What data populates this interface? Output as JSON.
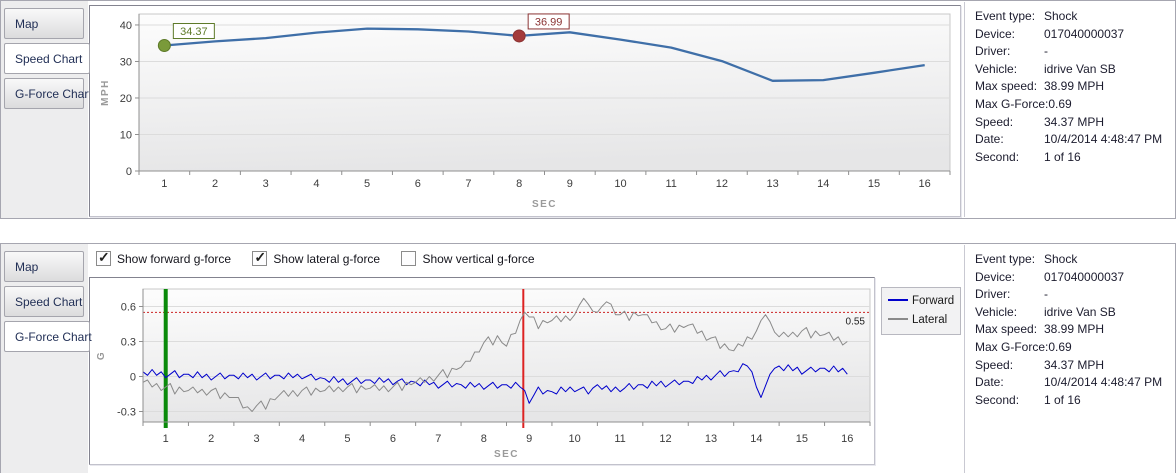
{
  "panels": [
    {
      "name": "speed-panel",
      "selected_tab": "Speed Chart",
      "tabs": [
        {
          "label": "Map"
        },
        {
          "label": "Speed Chart"
        },
        {
          "label": "G-Force Chart"
        }
      ],
      "info": {
        "rows": [
          {
            "label": "Event type:",
            "value": "Shock"
          },
          {
            "label": "Device:",
            "value": "017040000037"
          },
          {
            "label": "Driver:",
            "value": "-"
          },
          {
            "label": "Vehicle:",
            "value": "idrive Van SB"
          },
          {
            "label": "Max speed:",
            "value": "38.99 MPH"
          },
          {
            "label": "Max G-Force:",
            "value": "0.69"
          },
          {
            "label": "Speed:",
            "value": "34.37 MPH"
          },
          {
            "label": "Date:",
            "value": "10/4/2014 4:48:47 PM"
          },
          {
            "label": "Second:",
            "value": "1 of 16"
          }
        ]
      }
    },
    {
      "name": "gforce-panel",
      "selected_tab": "G-Force Chart",
      "tabs": [
        {
          "label": "Map"
        },
        {
          "label": "Speed Chart"
        },
        {
          "label": "G-Force Chart"
        }
      ],
      "checkboxes": [
        {
          "label": "Show forward g-force",
          "checked": true
        },
        {
          "label": "Show lateral g-force",
          "checked": true
        },
        {
          "label": "Show vertical g-force",
          "checked": false
        }
      ],
      "info": {
        "rows": [
          {
            "label": "Event type:",
            "value": "Shock"
          },
          {
            "label": "Device:",
            "value": "017040000037"
          },
          {
            "label": "Driver:",
            "value": "-"
          },
          {
            "label": "Vehicle:",
            "value": "idrive Van SB"
          },
          {
            "label": "Max speed:",
            "value": "38.99 MPH"
          },
          {
            "label": "Max G-Force:",
            "value": "0.69"
          },
          {
            "label": "Speed:",
            "value": "34.37 MPH"
          },
          {
            "label": "Date:",
            "value": "10/4/2014 4:48:47 PM"
          },
          {
            "label": "Second:",
            "value": "1 of 16"
          }
        ]
      }
    }
  ],
  "chart_data": [
    {
      "type": "line",
      "title": "Speed Chart",
      "xlabel": "SEC",
      "ylabel": "MPH",
      "xlim": [
        0.5,
        16.5
      ],
      "ylim": [
        0,
        43
      ],
      "xticks": [
        1,
        2,
        3,
        4,
        5,
        6,
        7,
        8,
        9,
        10,
        11,
        12,
        13,
        14,
        15,
        16
      ],
      "yticks": [
        {
          "v": 0,
          "label": "0"
        },
        {
          "v": 10,
          "label": "10"
        },
        {
          "v": 20,
          "label": "20"
        },
        {
          "v": 30,
          "label": "30"
        },
        {
          "v": 40,
          "label": "40"
        }
      ],
      "x": [
        1,
        2,
        3,
        4,
        5,
        6,
        7,
        8,
        9,
        10,
        11,
        12,
        13,
        14,
        15,
        16
      ],
      "values": [
        34.37,
        35.5,
        36.4,
        37.9,
        38.99,
        38.8,
        38.2,
        36.99,
        38.0,
        36.0,
        33.8,
        30.1,
        24.7,
        24.9,
        26.9,
        29.0
      ],
      "line_color": "#3f6fa8",
      "markers": [
        {
          "x": 1,
          "value": 34.37,
          "label": "34.37",
          "fill": "#7a9a3a",
          "stroke": "#5d7a28",
          "text_color": "#5d7a28"
        },
        {
          "x": 8,
          "value": 36.99,
          "label": "36.99",
          "fill": "#a43b3b",
          "stroke": "#8a3333",
          "text_color": "#8a3333"
        }
      ]
    },
    {
      "type": "line",
      "title": "G-Force Chart",
      "xlabel": "SEC",
      "ylabel": "G",
      "xlim": [
        0.5,
        16.5
      ],
      "ylim": [
        -0.39,
        0.75
      ],
      "xticks": [
        1,
        2,
        3,
        4,
        5,
        6,
        7,
        8,
        9,
        10,
        11,
        12,
        13,
        14,
        15,
        16
      ],
      "yticks": [
        {
          "v": -0.3,
          "label": "-0.3"
        },
        {
          "v": 0,
          "label": "0"
        },
        {
          "v": 0.3,
          "label": "0.3"
        },
        {
          "v": 0.6,
          "label": "0.6"
        }
      ],
      "x_start": 0.5,
      "x_step": 0.1,
      "threshold": {
        "value": 0.55,
        "label": "0.55",
        "color": "#cc2222"
      },
      "vlines": [
        {
          "x": 1.0,
          "color": "#0a8a0a",
          "width": 4
        },
        {
          "x": 8.87,
          "color": "#dd2222",
          "width": 2
        }
      ],
      "series": [
        {
          "name": "Forward",
          "color": "#0000cc",
          "values": [
            0.04,
            0.01,
            0.06,
            0.01,
            0.04,
            -0.01,
            0.02,
            0.05,
            -0.01,
            0.02,
            0.02,
            -0.01,
            0.04,
            -0.01,
            0.02,
            -0.03,
            0.0,
            0.03,
            -0.02,
            0.01,
            0.01,
            -0.02,
            0.03,
            -0.01,
            0.02,
            -0.03,
            0.0,
            0.03,
            -0.02,
            0.01,
            0.01,
            -0.02,
            0.03,
            -0.01,
            0.02,
            -0.02,
            0.0,
            0.02,
            -0.03,
            -0.01,
            -0.02,
            -0.05,
            0.0,
            -0.05,
            -0.02,
            -0.07,
            -0.04,
            -0.01,
            -0.06,
            -0.03,
            -0.03,
            -0.06,
            -0.01,
            -0.05,
            -0.02,
            -0.07,
            -0.04,
            -0.02,
            -0.07,
            -0.04,
            -0.05,
            -0.08,
            -0.03,
            -0.07,
            -0.05,
            -0.1,
            -0.07,
            -0.04,
            -0.09,
            -0.06,
            -0.07,
            -0.1,
            -0.05,
            -0.09,
            -0.06,
            -0.11,
            -0.08,
            -0.05,
            -0.1,
            -0.07,
            -0.07,
            -0.1,
            -0.05,
            -0.09,
            -0.12,
            -0.23,
            -0.16,
            -0.09,
            -0.15,
            -0.12,
            -0.13,
            -0.15,
            -0.09,
            -0.13,
            -0.09,
            -0.13,
            -0.11,
            -0.09,
            -0.15,
            -0.1,
            -0.07,
            -0.11,
            -0.08,
            -0.13,
            -0.09,
            -0.13,
            -0.1,
            -0.06,
            -0.11,
            -0.07,
            -0.07,
            -0.1,
            -0.04,
            -0.08,
            -0.04,
            -0.09,
            -0.06,
            -0.03,
            -0.07,
            -0.04,
            -0.04,
            -0.06,
            0.0,
            -0.03,
            0.01,
            -0.03,
            0.01,
            0.05,
            0.0,
            0.04,
            0.05,
            0.04,
            0.11,
            0.09,
            0.04,
            -0.09,
            -0.18,
            -0.08,
            0.02,
            0.07,
            0.09,
            0.05,
            0.1,
            0.05,
            0.08,
            0.02,
            0.05,
            0.08,
            0.04,
            0.07,
            0.07,
            0.04,
            0.09,
            0.04,
            0.07,
            0.02
          ]
        },
        {
          "name": "Lateral",
          "color": "#8a8a8a",
          "values": [
            -0.05,
            -0.03,
            -0.09,
            -0.06,
            -0.12,
            -0.09,
            -0.06,
            -0.15,
            -0.09,
            -0.13,
            -0.12,
            -0.09,
            -0.14,
            -0.11,
            -0.16,
            -0.12,
            -0.1,
            -0.19,
            -0.14,
            -0.18,
            -0.18,
            -0.18,
            -0.27,
            -0.26,
            -0.3,
            -0.25,
            -0.21,
            -0.28,
            -0.19,
            -0.2,
            -0.16,
            -0.12,
            -0.17,
            -0.12,
            -0.17,
            -0.12,
            -0.09,
            -0.16,
            -0.1,
            -0.13,
            -0.12,
            -0.08,
            -0.13,
            -0.09,
            -0.13,
            -0.09,
            -0.06,
            -0.14,
            -0.08,
            -0.11,
            -0.1,
            -0.07,
            -0.12,
            -0.08,
            -0.13,
            -0.09,
            -0.05,
            -0.12,
            -0.05,
            -0.07,
            -0.05,
            -0.01,
            -0.05,
            0.0,
            -0.04,
            0.01,
            0.06,
            -0.01,
            0.07,
            0.06,
            0.08,
            0.13,
            0.13,
            0.21,
            0.21,
            0.29,
            0.34,
            0.27,
            0.35,
            0.29,
            0.26,
            0.36,
            0.37,
            0.48,
            0.55,
            0.51,
            0.51,
            0.41,
            0.48,
            0.46,
            0.48,
            0.52,
            0.47,
            0.52,
            0.48,
            0.53,
            0.61,
            0.67,
            0.62,
            0.56,
            0.55,
            0.6,
            0.64,
            0.62,
            0.53,
            0.53,
            0.56,
            0.48,
            0.55,
            0.52,
            0.53,
            0.53,
            0.46,
            0.47,
            0.4,
            0.41,
            0.45,
            0.38,
            0.44,
            0.42,
            0.44,
            0.45,
            0.37,
            0.39,
            0.31,
            0.33,
            0.34,
            0.24,
            0.28,
            0.23,
            0.22,
            0.28,
            0.26,
            0.34,
            0.32,
            0.39,
            0.48,
            0.53,
            0.47,
            0.38,
            0.34,
            0.38,
            0.34,
            0.38,
            0.34,
            0.39,
            0.42,
            0.33,
            0.39,
            0.35,
            0.36,
            0.38,
            0.31,
            0.34,
            0.27,
            0.3
          ]
        }
      ]
    }
  ]
}
